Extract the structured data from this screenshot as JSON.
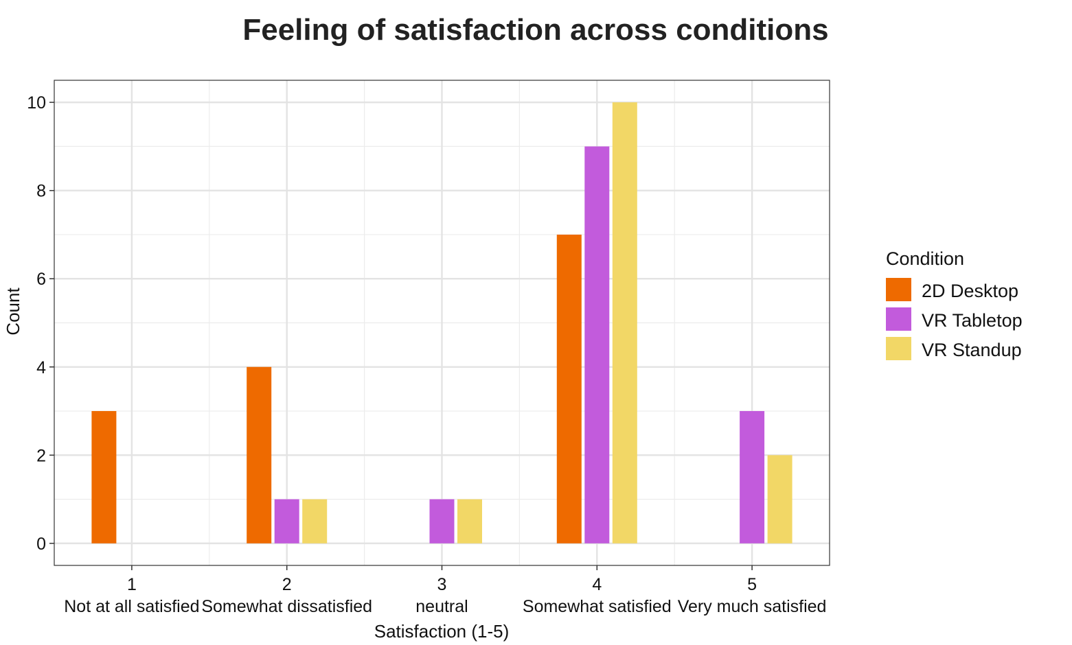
{
  "chart_data": {
    "type": "bar",
    "title": "Feeling of satisfaction across conditions",
    "xlabel": "Satisfaction (1-5)",
    "ylabel": "Count",
    "categories": [
      "1",
      "2",
      "3",
      "4",
      "5"
    ],
    "category_sublabels": [
      "Not at all satisfied",
      "Somewhat dissatisfied",
      "neutral",
      "Somewhat satisfied",
      "Very much satisfied"
    ],
    "series": [
      {
        "name": "2D Desktop",
        "color": "#EE6A00",
        "values": [
          3,
          4,
          0,
          7,
          0
        ]
      },
      {
        "name": "VR Tabletop",
        "color": "#C25BDC",
        "values": [
          0,
          1,
          1,
          9,
          3
        ]
      },
      {
        "name": "VR Standup",
        "color": "#F2D766",
        "values": [
          0,
          1,
          1,
          10,
          2
        ]
      }
    ],
    "yticks": [
      0,
      2,
      4,
      6,
      8,
      10
    ],
    "ylim": [
      -0.5,
      10.5
    ],
    "grid": true,
    "legend": {
      "title": "Condition",
      "position": "right"
    }
  }
}
